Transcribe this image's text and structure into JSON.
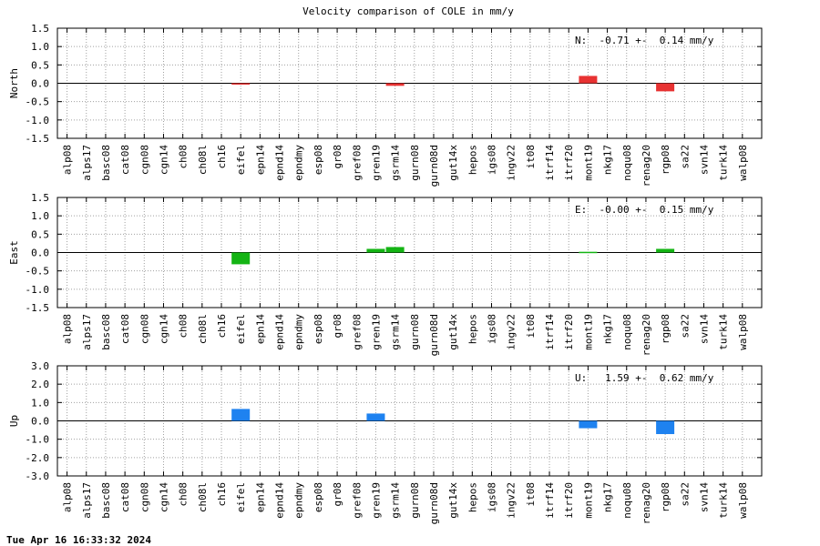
{
  "footer": {
    "timestamp": "Tue Apr 16 16:33:32 2024"
  },
  "chart_data": {
    "type": "bar",
    "title": "Velocity comparison of COLE in mm/y",
    "categories": [
      "alp08",
      "alps17",
      "basc08",
      "cat08",
      "cgn08",
      "cgn14",
      "ch08",
      "ch08l",
      "ch16",
      "eifel",
      "epn14",
      "epnd14",
      "epndmy",
      "esp08",
      "gr08",
      "gref08",
      "gren19",
      "gsrm14",
      "gurn08",
      "gurn08d",
      "gut14x",
      "hepos",
      "igs08",
      "ingv22",
      "it08",
      "itrf14",
      "itrf20",
      "mont19",
      "nkg17",
      "noqu08",
      "renag20",
      "rgp08",
      "sa22",
      "svn14",
      "turk14",
      "walp08"
    ],
    "grid": true,
    "panels": [
      {
        "name": "north",
        "ylabel": "North",
        "ylim": [
          -1.5,
          1.5
        ],
        "yticks": [
          "1.5",
          "1.0",
          "0.5",
          "0.0",
          "-0.5",
          "-1.0",
          "-1.5"
        ],
        "color": "#e83232",
        "summary": "N:  -0.71 +-  0.14 mm/y",
        "bars": [
          {
            "category": "eifel",
            "value": -0.02
          },
          {
            "category": "gsrm14",
            "value": -0.07
          },
          {
            "category": "mont19",
            "value": 0.2
          },
          {
            "category": "rgp08",
            "value": -0.22
          }
        ]
      },
      {
        "name": "east",
        "ylabel": "East",
        "ylim": [
          -1.5,
          1.5
        ],
        "yticks": [
          "1.5",
          "1.0",
          "0.5",
          "0.0",
          "-0.5",
          "-1.0",
          "-1.5"
        ],
        "color": "#14b414",
        "summary": "E:  -0.00 +-  0.15 mm/y",
        "bars": [
          {
            "category": "eifel",
            "value": -0.32
          },
          {
            "category": "gren19",
            "value": 0.1
          },
          {
            "category": "gsrm14",
            "value": 0.15
          },
          {
            "category": "mont19",
            "value": 0.02
          },
          {
            "category": "rgp08",
            "value": 0.1
          }
        ]
      },
      {
        "name": "up",
        "ylabel": "Up",
        "ylim": [
          -3.0,
          3.0
        ],
        "yticks": [
          "3.0",
          "2.0",
          "1.0",
          "0.0",
          "-1.0",
          "-2.0",
          "-3.0"
        ],
        "color": "#1e82f0",
        "summary": "U:   1.59 +-  0.62 mm/y",
        "bars": [
          {
            "category": "eifel",
            "value": 0.65
          },
          {
            "category": "gren19",
            "value": 0.4
          },
          {
            "category": "mont19",
            "value": -0.4
          },
          {
            "category": "rgp08",
            "value": -0.72
          }
        ]
      }
    ]
  }
}
